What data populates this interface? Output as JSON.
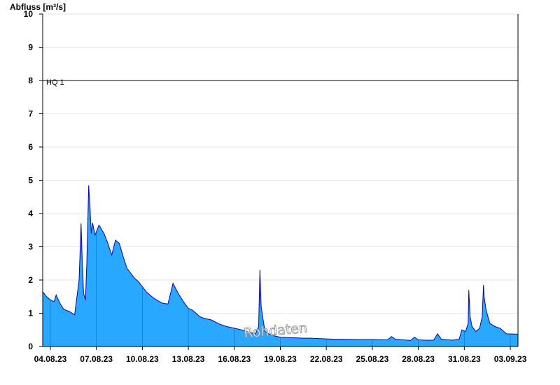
{
  "chart_data": {
    "type": "area",
    "ylabel": "Abfluss [m³/s]",
    "xlabel": "",
    "title": "",
    "ylim": [
      0,
      10
    ],
    "yticks": [
      0,
      1,
      2,
      3,
      4,
      5,
      6,
      7,
      8,
      9,
      10
    ],
    "x_start": "2023-08-03T12:00",
    "x_end": "2023-09-03T12:00",
    "xticks": [
      {
        "date": "2023-08-04",
        "label": "04.08.23"
      },
      {
        "date": "2023-08-07",
        "label": "07.08.23"
      },
      {
        "date": "2023-08-10",
        "label": "10.08.23"
      },
      {
        "date": "2023-08-13",
        "label": "13.08.23"
      },
      {
        "date": "2023-08-16",
        "label": "16.08.23"
      },
      {
        "date": "2023-08-19",
        "label": "19.08.23"
      },
      {
        "date": "2023-08-22",
        "label": "22.08.23"
      },
      {
        "date": "2023-08-25",
        "label": "25.08.23"
      },
      {
        "date": "2023-08-28",
        "label": "28.08.23"
      },
      {
        "date": "2023-08-31",
        "label": "31.08.23"
      },
      {
        "date": "2023-09-03",
        "label": "03.09.23"
      }
    ],
    "grid": "horizontal",
    "reference_line": {
      "label": "HQ 1",
      "value": 8
    },
    "watermark": "Rohdaten",
    "colors": {
      "fill": "#29a8ff",
      "line": "#0000cc",
      "grid": "#e6e6e6",
      "axis": "#000000"
    },
    "series": [
      {
        "x": [
          "2023-08-03T12:00",
          "2023-08-03T18:00",
          "2023-08-04T00:00",
          "2023-08-04T06:00",
          "2023-08-04T09:00",
          "2023-08-04T15:00",
          "2023-08-04T21:00",
          "2023-08-05T06:00",
          "2023-08-05T14:00",
          "2023-08-05T21:00",
          "2023-08-06T00:00",
          "2023-08-06T02:00",
          "2023-08-06T04:00",
          "2023-08-06T07:00",
          "2023-08-06T09:00",
          "2023-08-06T12:00",
          "2023-08-06T14:00",
          "2023-08-06T16:00",
          "2023-08-06T18:00",
          "2023-08-06T22:00",
          "2023-08-07T02:00",
          "2023-08-07T04:00",
          "2023-08-07T06:00",
          "2023-08-07T08:00",
          "2023-08-07T12:00",
          "2023-08-07T18:00",
          "2023-08-08T00:00",
          "2023-08-08T06:00",
          "2023-08-08T12:00",
          "2023-08-08T18:00",
          "2023-08-09T00:00",
          "2023-08-09T06:00",
          "2023-08-09T12:00",
          "2023-08-09T18:00",
          "2023-08-10T00:00",
          "2023-08-10T06:00",
          "2023-08-10T12:00",
          "2023-08-10T18:00",
          "2023-08-11T00:00",
          "2023-08-11T08:00",
          "2023-08-11T16:00",
          "2023-08-12T00:00",
          "2023-08-12T08:00",
          "2023-08-12T18:00",
          "2023-08-13T00:00",
          "2023-08-13T03:00",
          "2023-08-13T06:00",
          "2023-08-13T12:00",
          "2023-08-13T18:00",
          "2023-08-14T00:00",
          "2023-08-14T12:00",
          "2023-08-15T00:00",
          "2023-08-15T12:00",
          "2023-08-16T00:00",
          "2023-08-16T12:00",
          "2023-08-17T00:00",
          "2023-08-17T09:00",
          "2023-08-17T14:00",
          "2023-08-17T16:00",
          "2023-08-17T18:00",
          "2023-08-17T21:00",
          "2023-08-18T00:00",
          "2023-08-18T06:00",
          "2023-08-18T12:00",
          "2023-08-19T00:00",
          "2023-08-19T12:00",
          "2023-08-20T00:00",
          "2023-08-20T12:00",
          "2023-08-21T00:00",
          "2023-08-21T12:00",
          "2023-08-22T00:00",
          "2023-08-22T12:00",
          "2023-08-23T00:00",
          "2023-08-24T00:00",
          "2023-08-25T00:00",
          "2023-08-26T00:00",
          "2023-08-26T06:00",
          "2023-08-26T12:00",
          "2023-08-27T00:00",
          "2023-08-27T12:00",
          "2023-08-27T18:00",
          "2023-08-28T00:00",
          "2023-08-28T12:00",
          "2023-08-29T00:00",
          "2023-08-29T06:00",
          "2023-08-29T12:00",
          "2023-08-30T00:00",
          "2023-08-30T06:00",
          "2023-08-30T12:00",
          "2023-08-30T16:00",
          "2023-08-30T20:00",
          "2023-08-31T02:00",
          "2023-08-31T06:00",
          "2023-08-31T07:00",
          "2023-08-31T09:00",
          "2023-08-31T12:00",
          "2023-08-31T18:00",
          "2023-09-01T00:00",
          "2023-09-01T04:00",
          "2023-09-01T06:00",
          "2023-09-01T07:00",
          "2023-09-01T10:00",
          "2023-09-01T16:00",
          "2023-09-02T00:00",
          "2023-09-02T08:00",
          "2023-09-02T14:00",
          "2023-09-02T18:00",
          "2023-09-03T12:00"
        ],
        "values": [
          1.65,
          1.5,
          1.4,
          1.35,
          1.55,
          1.3,
          1.12,
          1.05,
          0.95,
          2.0,
          3.7,
          2.5,
          1.6,
          1.4,
          2.5,
          4.85,
          4.2,
          3.4,
          3.72,
          3.35,
          3.55,
          3.65,
          3.6,
          3.52,
          3.4,
          3.1,
          2.75,
          3.2,
          3.1,
          2.7,
          2.35,
          2.2,
          2.05,
          1.95,
          1.8,
          1.65,
          1.55,
          1.45,
          1.38,
          1.3,
          1.28,
          1.9,
          1.6,
          1.3,
          1.15,
          1.12,
          1.1,
          1.0,
          0.9,
          0.85,
          0.8,
          0.68,
          0.6,
          0.55,
          0.5,
          0.42,
          0.38,
          0.6,
          2.3,
          1.2,
          0.8,
          0.45,
          0.38,
          0.33,
          0.28,
          0.27,
          0.26,
          0.25,
          0.25,
          0.24,
          0.23,
          0.22,
          0.22,
          0.21,
          0.21,
          0.2,
          0.3,
          0.22,
          0.2,
          0.18,
          0.28,
          0.2,
          0.19,
          0.19,
          0.38,
          0.22,
          0.2,
          0.19,
          0.21,
          0.22,
          0.5,
          0.45,
          0.7,
          1.7,
          0.9,
          0.6,
          0.45,
          0.55,
          0.9,
          1.85,
          1.5,
          1.1,
          0.7,
          0.6,
          0.55,
          0.45,
          0.38,
          0.37
        ]
      }
    ]
  }
}
